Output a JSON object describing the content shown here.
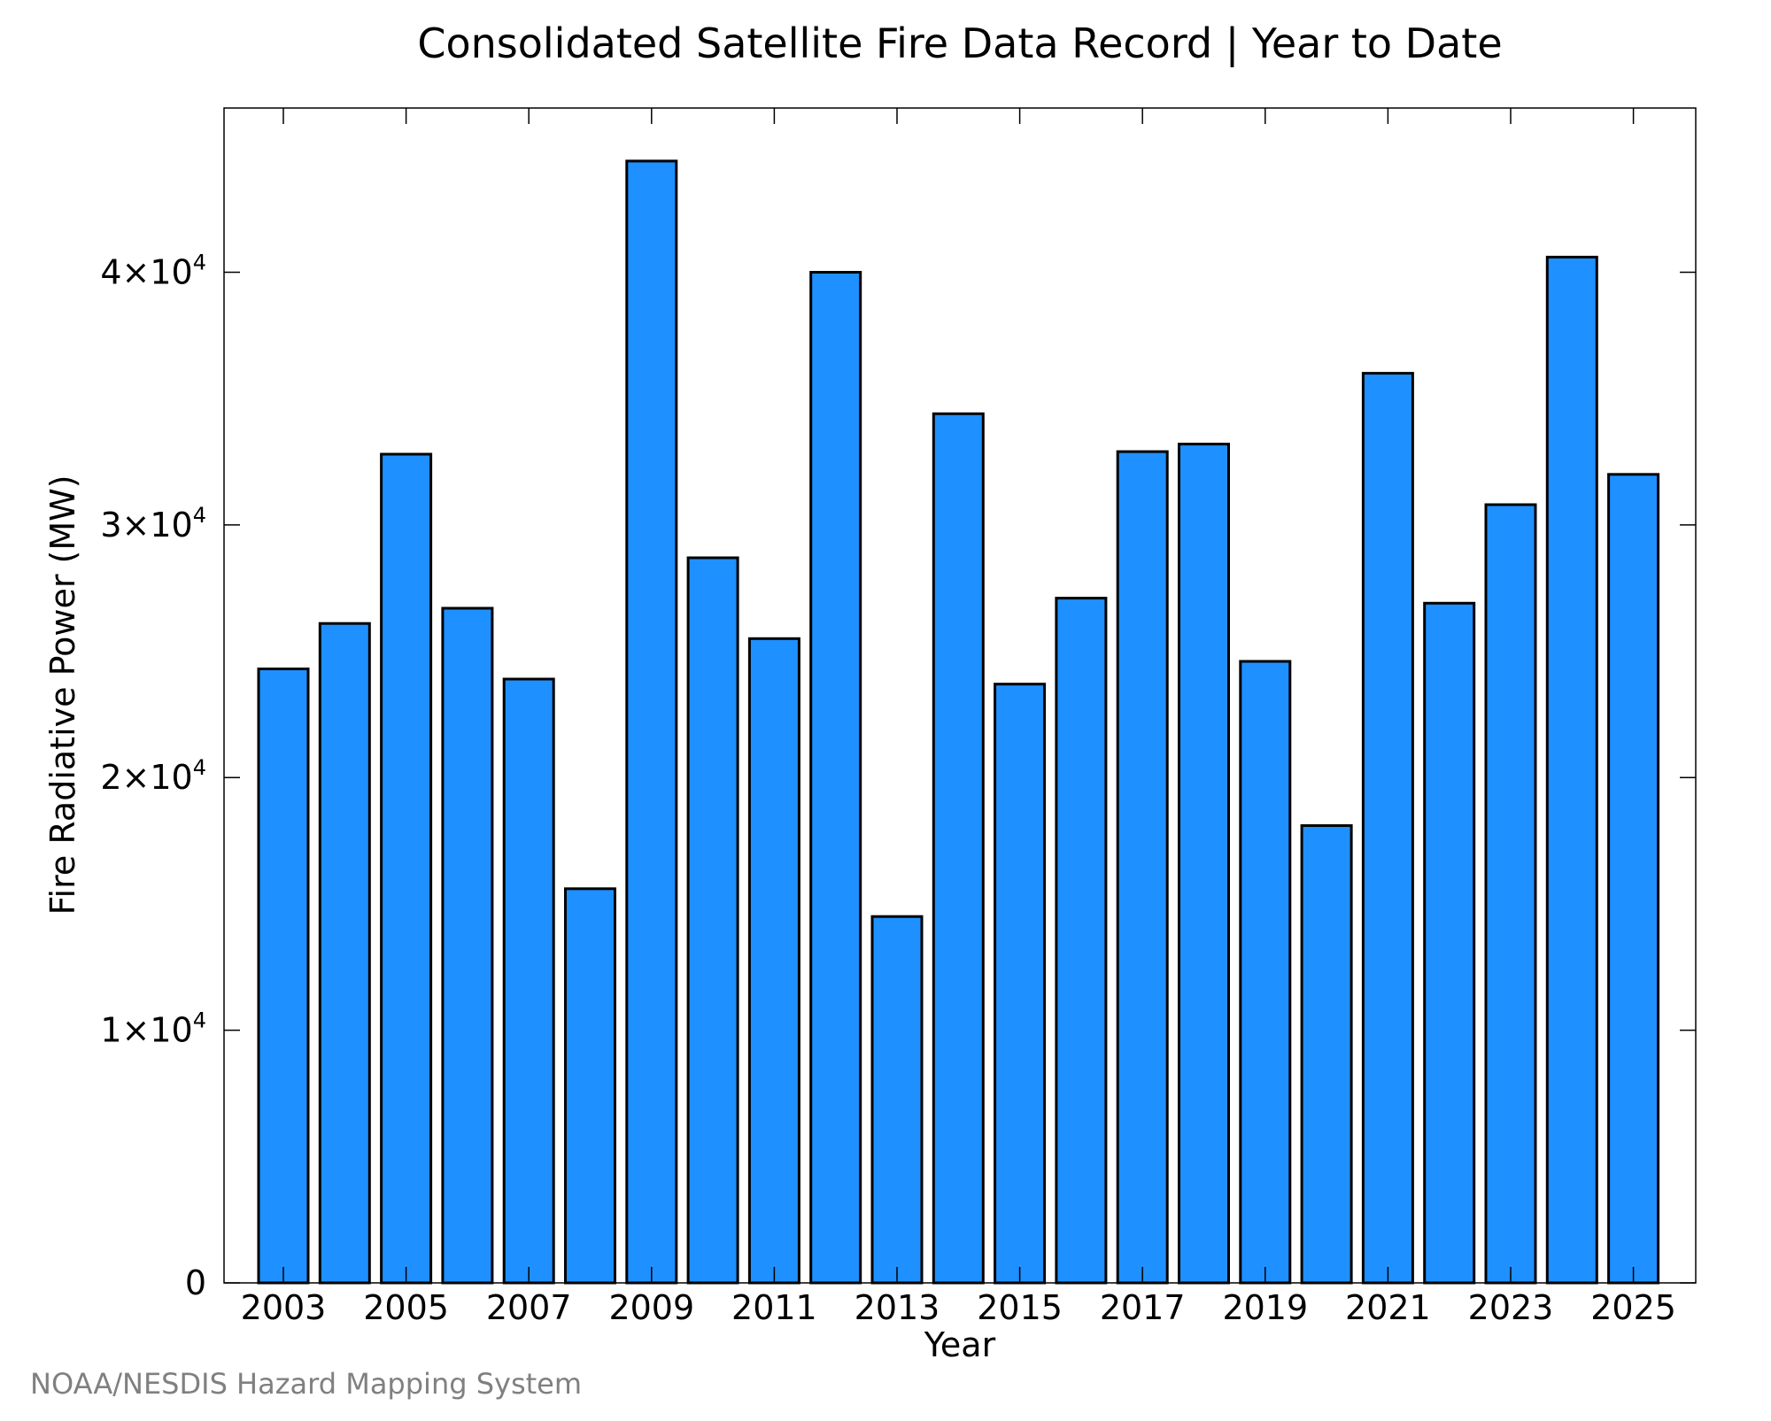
{
  "chart_data": {
    "type": "bar",
    "title": "Consolidated Satellite Fire Data Record | Year to Date",
    "xlabel": "Year",
    "ylabel": "Fire Radiative Power (MW)",
    "categories": [
      "2003",
      "2004",
      "2005",
      "2006",
      "2007",
      "2008",
      "2009",
      "2010",
      "2011",
      "2012",
      "2013",
      "2014",
      "2015",
      "2016",
      "2017",
      "2018",
      "2019",
      "2020",
      "2021",
      "2022",
      "2023",
      "2024",
      "2025"
    ],
    "values": [
      24300,
      26100,
      32800,
      26700,
      23900,
      15600,
      44400,
      28700,
      25500,
      40000,
      14500,
      34400,
      23700,
      27100,
      32900,
      33200,
      24600,
      18100,
      36000,
      26900,
      30800,
      40600,
      32000
    ],
    "xtick_labels": [
      "2003",
      "2005",
      "2007",
      "2009",
      "2011",
      "2013",
      "2015",
      "2017",
      "2019",
      "2021",
      "2023",
      "2025"
    ],
    "yticks": [
      {
        "value": 0,
        "mantissa": "0",
        "exponent": ""
      },
      {
        "value": 10000,
        "mantissa": "1×10",
        "exponent": "4"
      },
      {
        "value": 20000,
        "mantissa": "2×10",
        "exponent": "4"
      },
      {
        "value": 30000,
        "mantissa": "3×10",
        "exponent": "4"
      },
      {
        "value": 40000,
        "mantissa": "4×10",
        "exponent": "4"
      }
    ],
    "ylim": [
      0,
      46500
    ],
    "grid": false,
    "legend": "none",
    "bar_color": "#1e90ff",
    "edge_color": "#000000"
  },
  "credit": "NOAA/NESDIS Hazard Mapping System"
}
